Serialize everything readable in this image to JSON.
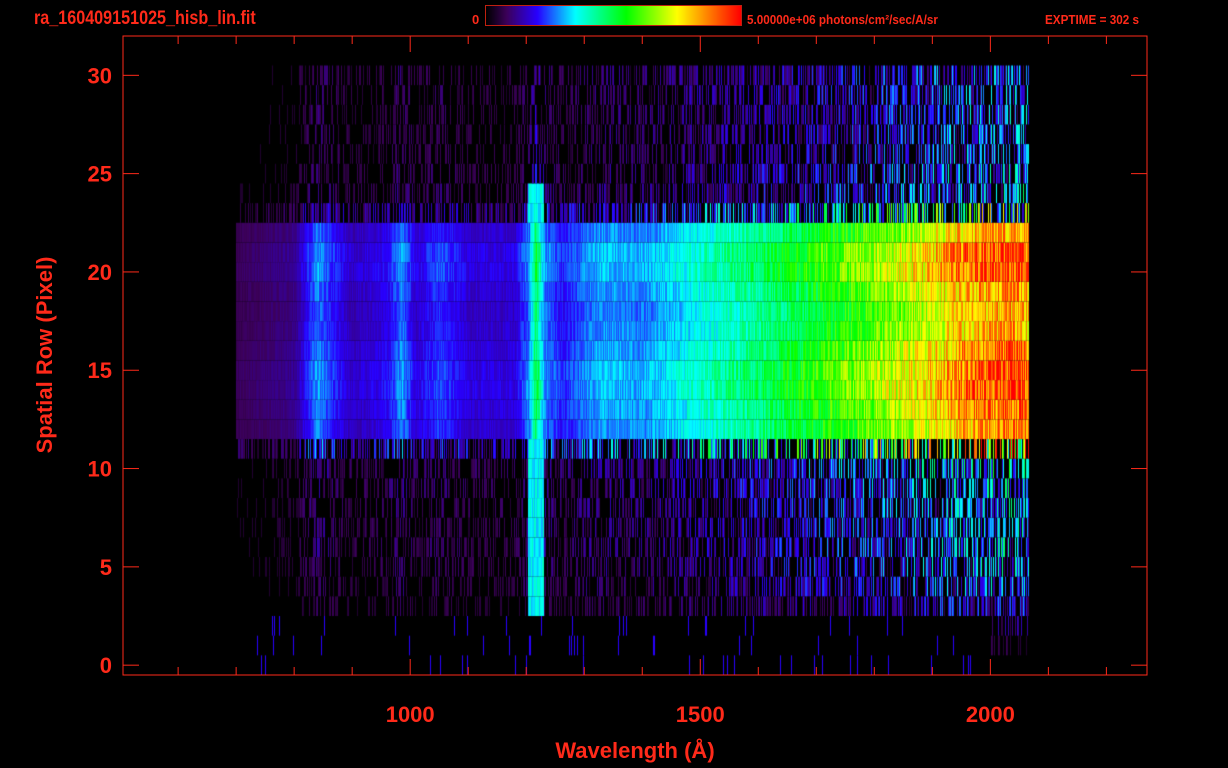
{
  "header": {
    "file_title": "ra_160409151025_hisb_lin.fit",
    "colorbar_min_label": "0",
    "colorbar_max_label": "5.00000e+06 photons/cm²/sec/A/sr",
    "exptime_label": "EXPTIME = 302 s"
  },
  "chart_data": {
    "type": "heatmap",
    "title": "ra_160409151025_hisb_lin.fit",
    "xlabel": "Wavelength (Å)",
    "ylabel": "Spatial Row (Pixel)",
    "xlim": [
      505,
      2270
    ],
    "ylim": [
      -0.5,
      32
    ],
    "x_ticks": [
      1000,
      1500,
      2000
    ],
    "y_ticks": [
      0,
      5,
      10,
      15,
      20,
      25,
      30
    ],
    "color_scale": {
      "min": 0,
      "max": 5000000,
      "units": "photons/cm²/sec/A/sr",
      "colormap": "rainbow"
    },
    "grid": false,
    "data_extent_wavelength": [
      700,
      2065
    ],
    "bright_rows": [
      12,
      22
    ],
    "spectrum_profile_fraction_of_max": {
      "wavelength": [
        700,
        800,
        840,
        870,
        900,
        960,
        985,
        1010,
        1050,
        1100,
        1180,
        1205,
        1216,
        1230,
        1260,
        1300,
        1330,
        1400,
        1500,
        1600,
        1700,
        1800,
        1900,
        1950,
        2000,
        2050,
        2065
      ],
      "value": [
        0.08,
        0.12,
        0.3,
        0.22,
        0.16,
        0.2,
        0.3,
        0.18,
        0.25,
        0.18,
        0.18,
        0.3,
        0.52,
        0.3,
        0.22,
        0.28,
        0.32,
        0.3,
        0.4,
        0.48,
        0.58,
        0.68,
        0.8,
        0.88,
        0.92,
        0.95,
        0.9
      ]
    },
    "row_weight": {
      "row": [
        0,
        1,
        2,
        3,
        4,
        5,
        6,
        7,
        8,
        9,
        10,
        11,
        12,
        13,
        14,
        15,
        16,
        17,
        18,
        19,
        20,
        21,
        22,
        23,
        24,
        25,
        26,
        27,
        28,
        29,
        30
      ],
      "weight": [
        0.02,
        0.05,
        0.1,
        0.2,
        0.25,
        0.28,
        0.3,
        0.3,
        0.3,
        0.32,
        0.35,
        0.75,
        0.92,
        0.95,
        1.0,
        1.0,
        0.95,
        0.9,
        0.88,
        0.92,
        1.0,
        1.0,
        0.9,
        0.55,
        0.3,
        0.28,
        0.25,
        0.25,
        0.25,
        0.25,
        0.25
      ]
    }
  },
  "colors": {
    "axis": "#ff2a1a",
    "background": "#000000"
  }
}
